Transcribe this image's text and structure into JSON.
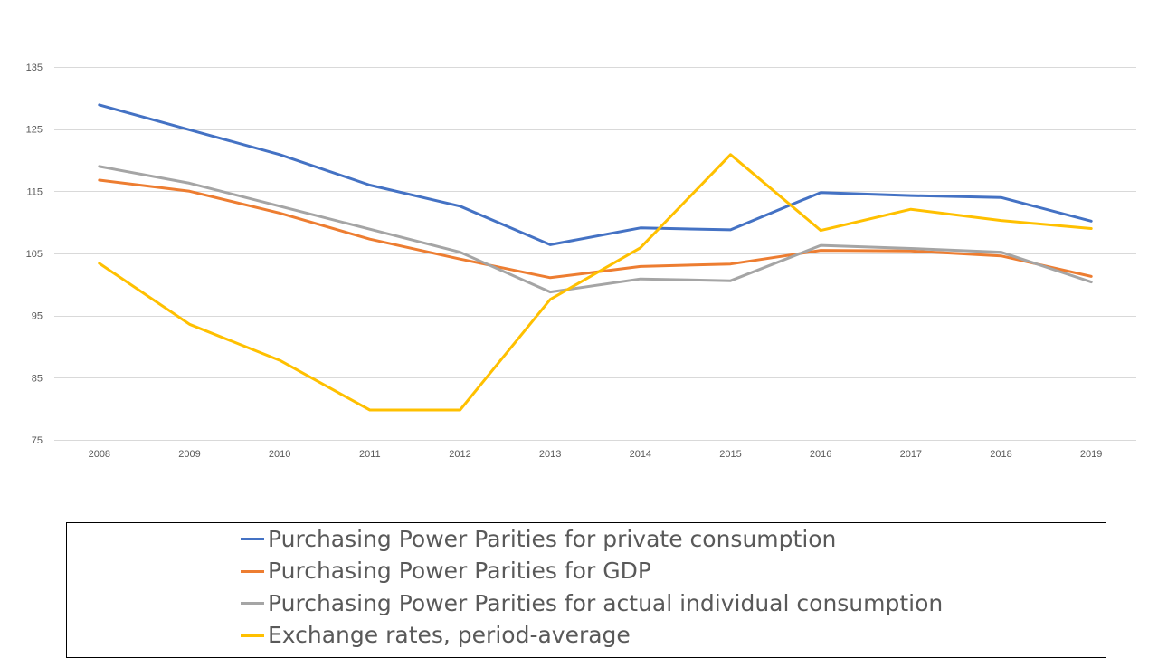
{
  "chart_data": {
    "type": "line",
    "title": "",
    "xlabel": "",
    "ylabel": "",
    "x": [
      "2008",
      "2009",
      "2010",
      "2011",
      "2012",
      "2013",
      "2014",
      "2015",
      "2016",
      "2017",
      "2018",
      "2019"
    ],
    "ylim": [
      75,
      135
    ],
    "yticks": [
      75,
      85,
      95,
      105,
      115,
      125,
      135
    ],
    "grid": "horizontal",
    "legend_position": "bottom",
    "series": [
      {
        "name": "Purchasing Power Parities for private consumption",
        "color": "#4472c4",
        "values": [
          128.9,
          124.9,
          120.9,
          116.0,
          112.6,
          106.4,
          109.1,
          108.8,
          114.8,
          114.3,
          114.0,
          110.2
        ]
      },
      {
        "name": "Purchasing Power Parities for GDP",
        "color": "#ed7d31",
        "values": [
          116.8,
          115.0,
          111.5,
          107.3,
          104.1,
          101.1,
          102.9,
          103.3,
          105.5,
          105.4,
          104.6,
          101.3
        ]
      },
      {
        "name": "Purchasing Power Parities for actual individual consumption",
        "color": "#a5a5a5",
        "values": [
          119.0,
          116.3,
          112.6,
          108.9,
          105.2,
          98.8,
          100.9,
          100.6,
          106.3,
          105.8,
          105.2,
          100.4
        ]
      },
      {
        "name": "Exchange rates, period-average",
        "color": "#ffc000",
        "values": [
          103.4,
          93.6,
          87.8,
          79.8,
          79.8,
          97.6,
          105.9,
          120.9,
          108.7,
          112.1,
          110.3,
          109.0
        ]
      }
    ]
  }
}
